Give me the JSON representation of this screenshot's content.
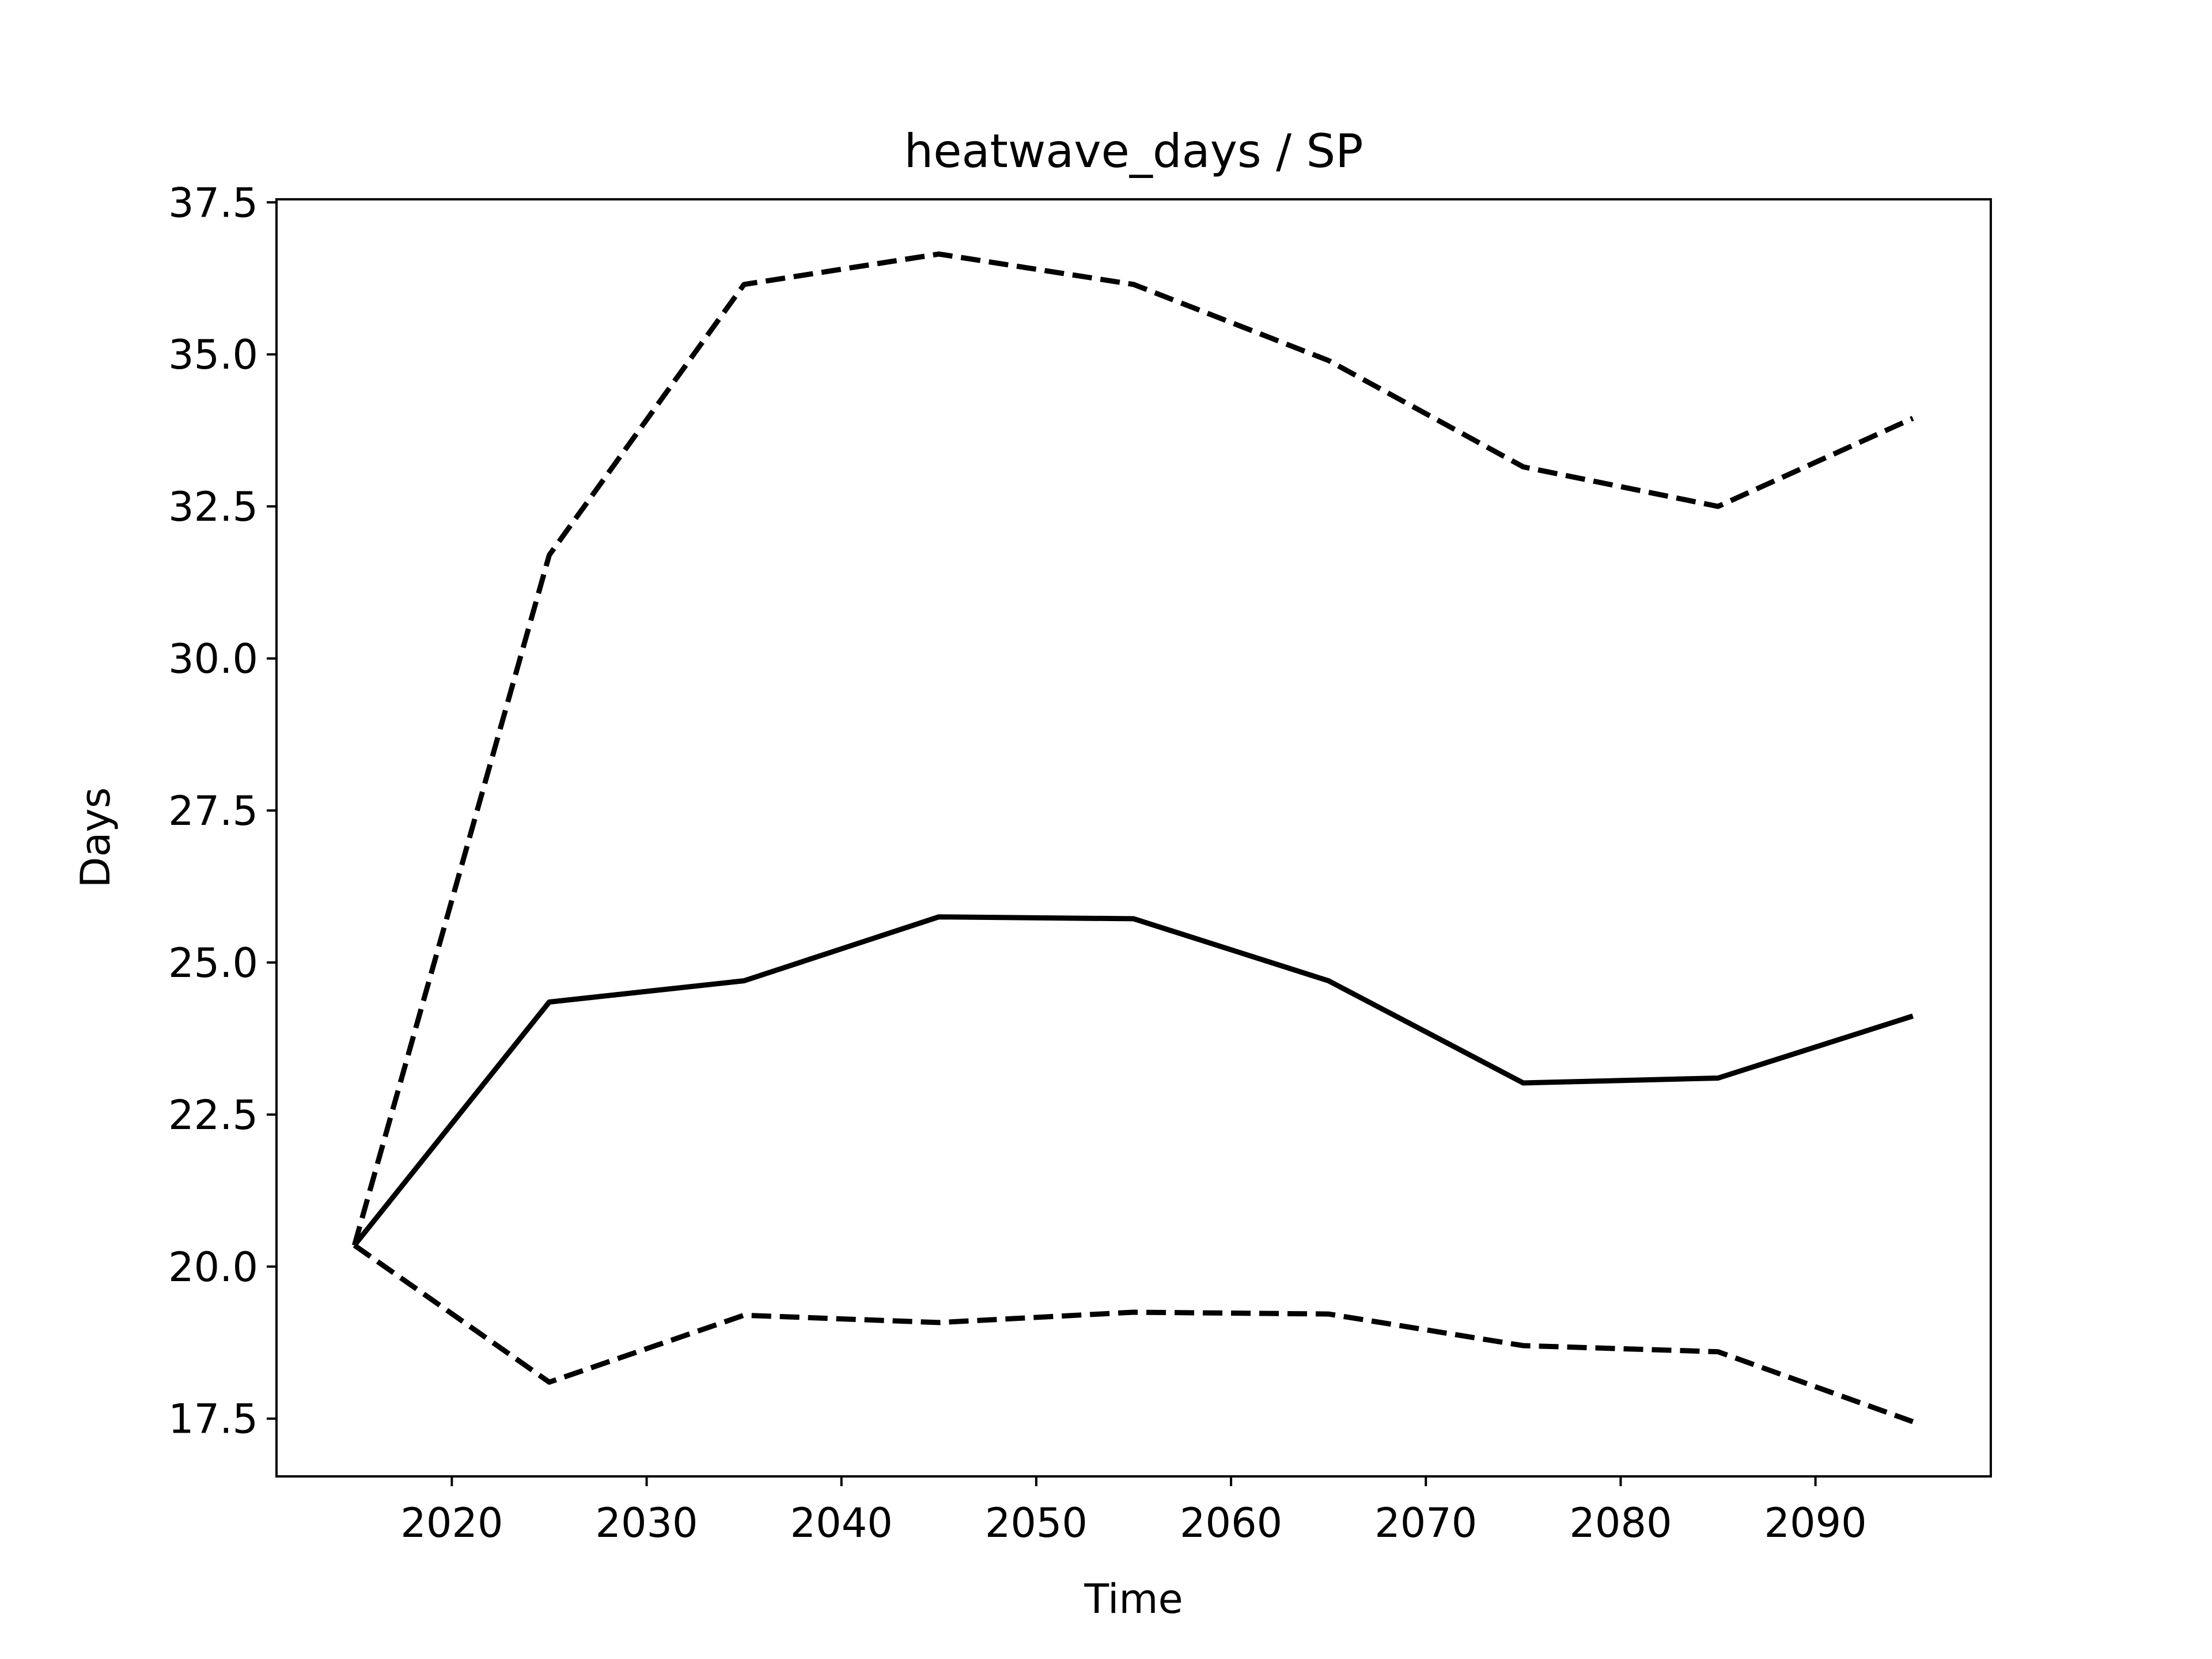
{
  "chart_data": {
    "type": "line",
    "title": "heatwave_days / SP",
    "xlabel": "Time",
    "ylabel": "Days",
    "xlim": [
      2011,
      2099
    ],
    "ylim": [
      16.55,
      37.55
    ],
    "xticks": [
      2020,
      2030,
      2040,
      2050,
      2060,
      2070,
      2080,
      2090
    ],
    "yticks": [
      17.5,
      20.0,
      22.5,
      25.0,
      27.5,
      30.0,
      32.5,
      35.0,
      37.5
    ],
    "xtick_labels": [
      "2020",
      "2030",
      "2040",
      "2050",
      "2060",
      "2070",
      "2080",
      "2090"
    ],
    "ytick_labels": [
      "17.5",
      "20.0",
      "22.5",
      "25.0",
      "27.5",
      "30.0",
      "32.5",
      "35.0",
      "37.5"
    ],
    "grid": false,
    "legend": "none",
    "x": [
      2015,
      2025,
      2035,
      2045,
      2055,
      2065,
      2075,
      2085,
      2095
    ],
    "series": [
      {
        "style": "dashed",
        "color": "#000000",
        "values": [
          20.35,
          31.7,
          36.15,
          36.65,
          36.15,
          34.9,
          33.15,
          32.5,
          33.95
        ]
      },
      {
        "style": "solid",
        "color": "#000000",
        "values": [
          20.35,
          24.35,
          24.7,
          25.75,
          25.72,
          24.7,
          23.02,
          23.1,
          24.12
        ]
      },
      {
        "style": "dashed",
        "color": "#000000",
        "values": [
          20.35,
          18.1,
          19.2,
          19.08,
          19.25,
          19.22,
          18.7,
          18.6,
          17.45
        ]
      }
    ]
  }
}
